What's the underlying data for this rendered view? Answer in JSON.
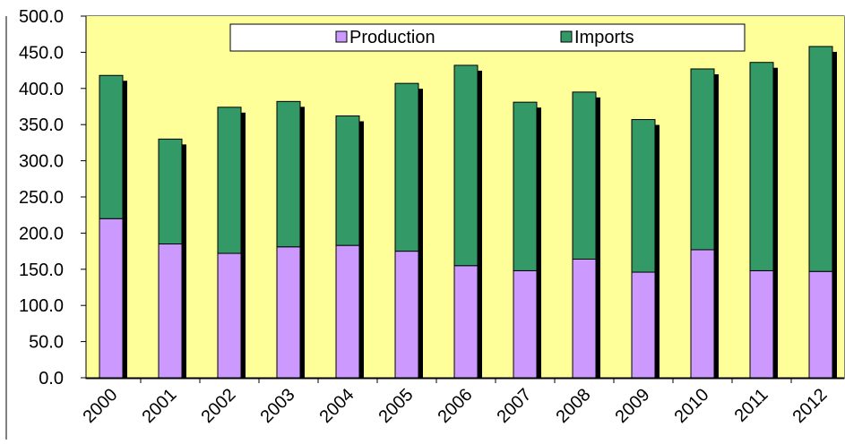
{
  "chart_data": {
    "type": "bar",
    "stacked": true,
    "title": "",
    "xlabel": "",
    "ylabel": "",
    "categories": [
      "2000",
      "2001",
      "2002",
      "2003",
      "2004",
      "2005",
      "2006",
      "2007",
      "2008",
      "2009",
      "2010",
      "2011",
      "2012"
    ],
    "series": [
      {
        "name": "Production",
        "values": [
          220,
          185,
          172,
          181,
          183,
          175,
          155,
          148,
          164,
          146,
          177,
          148,
          147
        ]
      },
      {
        "name": "Imports",
        "values": [
          198,
          145,
          202,
          201,
          179,
          232,
          277,
          233,
          231,
          211,
          250,
          288,
          311
        ]
      }
    ],
    "ylim": [
      0,
      500
    ],
    "y_ticks": [
      "0.0",
      "50.0",
      "100.0",
      "150.0",
      "200.0",
      "250.0",
      "300.0",
      "350.0",
      "400.0",
      "450.0",
      "500.0"
    ],
    "grid": false,
    "legend_position": "top",
    "colors": {
      "plot_background": "#FFFF99",
      "Production": "#CC99FF",
      "Imports": "#339966",
      "shadow": "#000000"
    }
  }
}
